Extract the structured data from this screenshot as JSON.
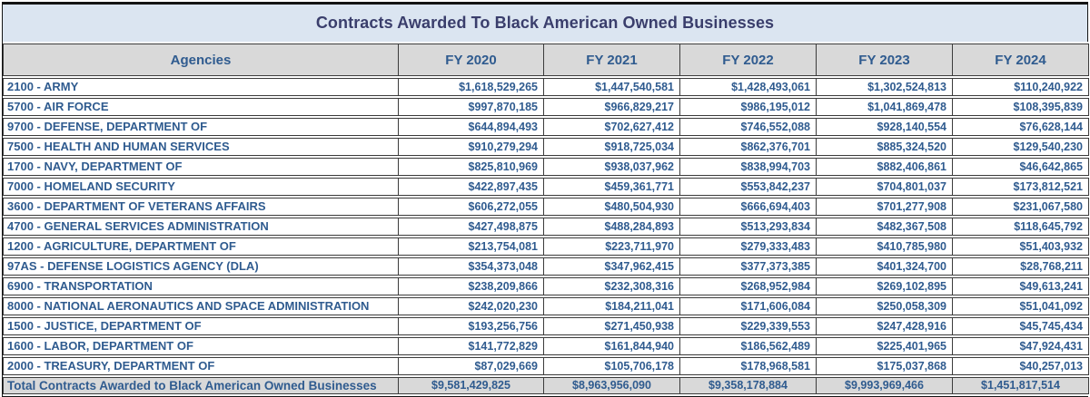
{
  "title": "Contracts Awarded To Black American Owned Businesses",
  "colors": {
    "title_bg": "#dbe5f1",
    "title_text": "#3a3e6c",
    "header_bg": "#d9d9d9",
    "text_blue": "#2f5b8f",
    "total_bg": "#d9d9d9",
    "border": "#3b3b3b"
  },
  "table": {
    "columns": [
      "Agencies",
      "FY 2020",
      "FY 2021",
      "FY 2022",
      "FY 2023",
      "FY 2024"
    ],
    "rows": [
      {
        "agency": "2100 - ARMY",
        "values": [
          "$1,618,529,265",
          "$1,447,540,581",
          "$1,428,493,061",
          "$1,302,524,813",
          "$110,240,922"
        ]
      },
      {
        "agency": "5700 - AIR FORCE",
        "values": [
          "$997,870,185",
          "$966,829,217",
          "$986,195,012",
          "$1,041,869,478",
          "$108,395,839"
        ]
      },
      {
        "agency": "9700 - DEFENSE, DEPARTMENT OF",
        "values": [
          "$644,894,493",
          "$702,627,412",
          "$746,552,088",
          "$928,140,554",
          "$76,628,144"
        ]
      },
      {
        "agency": "7500 - HEALTH AND HUMAN SERVICES",
        "values": [
          "$910,279,294",
          "$918,725,034",
          "$862,376,701",
          "$885,324,520",
          "$129,540,230"
        ]
      },
      {
        "agency": "1700 - NAVY, DEPARTMENT OF",
        "values": [
          "$825,810,969",
          "$938,037,962",
          "$838,994,703",
          "$882,406,861",
          "$46,642,865"
        ]
      },
      {
        "agency": "7000 - HOMELAND SECURITY",
        "values": [
          "$422,897,435",
          "$459,361,771",
          "$553,842,237",
          "$704,801,037",
          "$173,812,521"
        ]
      },
      {
        "agency": "3600 - DEPARTMENT OF VETERANS AFFAIRS",
        "values": [
          "$606,272,055",
          "$480,504,930",
          "$666,694,403",
          "$701,277,908",
          "$231,067,580"
        ]
      },
      {
        "agency": "4700 - GENERAL SERVICES ADMINISTRATION",
        "values": [
          "$427,498,875",
          "$488,284,893",
          "$513,293,834",
          "$482,367,508",
          "$118,645,792"
        ]
      },
      {
        "agency": "1200 - AGRICULTURE, DEPARTMENT OF",
        "values": [
          "$213,754,081",
          "$223,711,970",
          "$279,333,483",
          "$410,785,980",
          "$51,403,932"
        ]
      },
      {
        "agency": "97AS - DEFENSE LOGISTICS AGENCY (DLA)",
        "values": [
          "$354,373,048",
          "$347,962,415",
          "$377,373,385",
          "$401,324,700",
          "$28,768,211"
        ]
      },
      {
        "agency": "6900 - TRANSPORTATION",
        "values": [
          "$238,209,866",
          "$232,308,316",
          "$268,952,984",
          "$269,102,895",
          "$49,613,241"
        ]
      },
      {
        "agency": "8000 - NATIONAL AERONAUTICS AND SPACE ADMINISTRATION",
        "values": [
          "$242,020,230",
          "$184,211,041",
          "$171,606,084",
          "$250,058,309",
          "$51,041,092"
        ]
      },
      {
        "agency": "1500 - JUSTICE, DEPARTMENT OF",
        "values": [
          "$193,256,756",
          "$271,450,938",
          "$229,339,553",
          "$247,428,916",
          "$45,745,434"
        ]
      },
      {
        "agency": "1600 - LABOR, DEPARTMENT OF",
        "values": [
          "$141,772,829",
          "$161,844,940",
          "$186,562,489",
          "$225,401,965",
          "$47,924,431"
        ]
      },
      {
        "agency": "2000 - TREASURY, DEPARTMENT OF",
        "values": [
          "$87,029,669",
          "$105,706,178",
          "$178,968,581",
          "$175,037,868",
          "$40,257,013"
        ]
      }
    ],
    "total": {
      "label": "Total Contracts Awarded to Black American Owned Businesses",
      "values": [
        "$9,581,429,825",
        "$8,963,956,090",
        "$9,358,178,884",
        "$9,993,969,466",
        "$1,451,817,514"
      ]
    }
  },
  "chart_data": {
    "type": "table",
    "title": "Contracts Awarded To Black American Owned Businesses",
    "categories": [
      "FY 2020",
      "FY 2021",
      "FY 2022",
      "FY 2023",
      "FY 2024"
    ],
    "series": [
      {
        "name": "2100 - ARMY",
        "values": [
          1618529265,
          1447540581,
          1428493061,
          1302524813,
          110240922
        ]
      },
      {
        "name": "5700 - AIR FORCE",
        "values": [
          997870185,
          966829217,
          986195012,
          1041869478,
          108395839
        ]
      },
      {
        "name": "9700 - DEFENSE, DEPARTMENT OF",
        "values": [
          644894493,
          702627412,
          746552088,
          928140554,
          76628144
        ]
      },
      {
        "name": "7500 - HEALTH AND HUMAN SERVICES",
        "values": [
          910279294,
          918725034,
          862376701,
          885324520,
          129540230
        ]
      },
      {
        "name": "1700 - NAVY, DEPARTMENT OF",
        "values": [
          825810969,
          938037962,
          838994703,
          882406861,
          46642865
        ]
      },
      {
        "name": "7000 - HOMELAND SECURITY",
        "values": [
          422897435,
          459361771,
          553842237,
          704801037,
          173812521
        ]
      },
      {
        "name": "3600 - DEPARTMENT OF VETERANS AFFAIRS",
        "values": [
          606272055,
          480504930,
          666694403,
          701277908,
          231067580
        ]
      },
      {
        "name": "4700 - GENERAL SERVICES ADMINISTRATION",
        "values": [
          427498875,
          488284893,
          513293834,
          482367508,
          118645792
        ]
      },
      {
        "name": "1200 - AGRICULTURE, DEPARTMENT OF",
        "values": [
          213754081,
          223711970,
          279333483,
          410785980,
          51403932
        ]
      },
      {
        "name": "97AS - DEFENSE LOGISTICS AGENCY (DLA)",
        "values": [
          354373048,
          347962415,
          377373385,
          401324700,
          28768211
        ]
      },
      {
        "name": "6900 - TRANSPORTATION",
        "values": [
          238209866,
          232308316,
          268952984,
          269102895,
          49613241
        ]
      },
      {
        "name": "8000 - NATIONAL AERONAUTICS AND SPACE ADMINISTRATION",
        "values": [
          242020230,
          184211041,
          171606084,
          250058309,
          51041092
        ]
      },
      {
        "name": "1500 - JUSTICE, DEPARTMENT OF",
        "values": [
          193256756,
          271450938,
          229339553,
          247428916,
          45745434
        ]
      },
      {
        "name": "1600 - LABOR, DEPARTMENT OF",
        "values": [
          141772829,
          161844940,
          186562489,
          225401965,
          47924431
        ]
      },
      {
        "name": "2000 - TREASURY, DEPARTMENT OF",
        "values": [
          87029669,
          105706178,
          178968581,
          175037868,
          40257013
        ]
      },
      {
        "name": "Total Contracts Awarded to Black American Owned Businesses",
        "values": [
          9581429825,
          8963956090,
          9358178884,
          9993969466,
          1451817514
        ]
      }
    ]
  }
}
